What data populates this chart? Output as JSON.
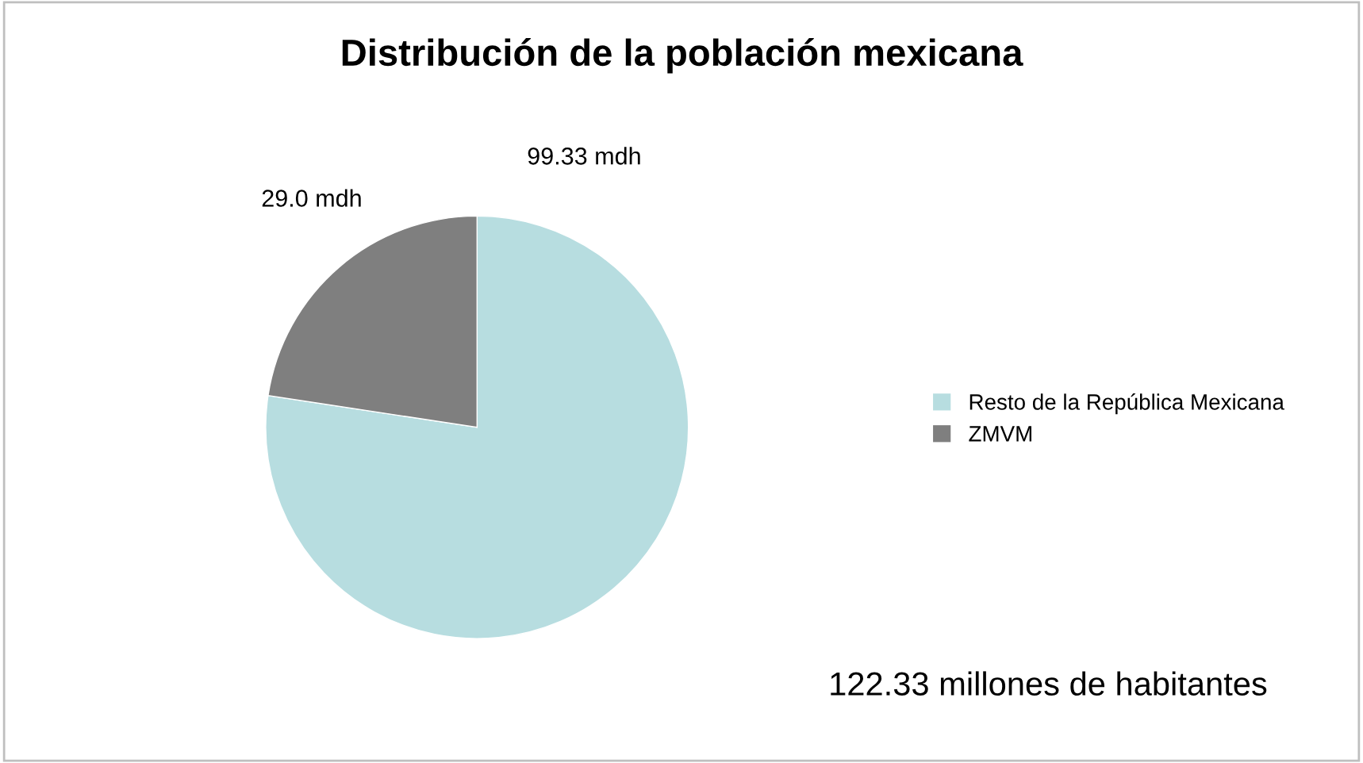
{
  "chart_data": {
    "type": "pie",
    "title": "Distribución de la población mexicana",
    "categories": [
      "Resto de la República Mexicana",
      "ZMVM"
    ],
    "values": [
      99.33,
      29.0
    ],
    "colors": [
      "#b7dde0",
      "#7f7f7f"
    ],
    "value_labels": [
      "99.33 mdh",
      "29.0 mdh"
    ],
    "annotations": [
      "122.33 millones de habitantes"
    ],
    "legend": "right"
  }
}
